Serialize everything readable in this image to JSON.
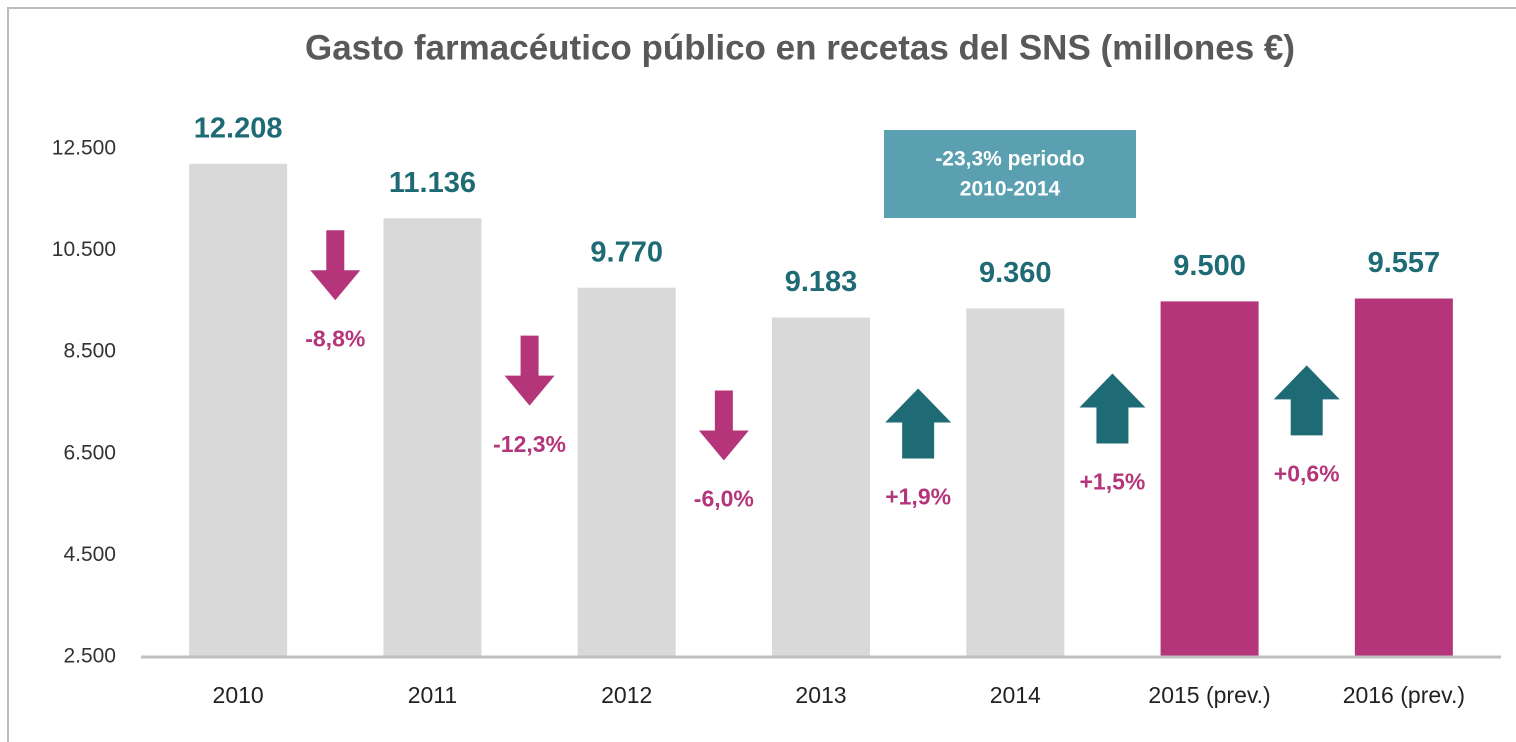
{
  "chart_data": {
    "type": "bar",
    "title": "Gasto farmacéutico público en recetas del SNS (millones €)",
    "categories": [
      "2010",
      "2011",
      "2012",
      "2013",
      "2014",
      "2015 (prev.)",
      "2016 (prev.)"
    ],
    "values": [
      12208,
      11136,
      9770,
      9183,
      9360,
      9500,
      9557
    ],
    "value_labels": [
      "12.208",
      "11.136",
      "9.770",
      "9.183",
      "9.360",
      "9.500",
      "9.557"
    ],
    "colors": [
      "#d9d9d9",
      "#d9d9d9",
      "#d9d9d9",
      "#d9d9d9",
      "#d9d9d9",
      "#b5357a",
      "#b5357a"
    ],
    "ylim": [
      2500,
      12500
    ],
    "yticks": [
      {
        "value": 2500,
        "label": "2.500"
      },
      {
        "value": 4500,
        "label": "4.500"
      },
      {
        "value": 6500,
        "label": "6.500"
      },
      {
        "value": 8500,
        "label": "8.500"
      },
      {
        "value": 10500,
        "label": "10.500"
      },
      {
        "value": 12500,
        "label": "12.500"
      }
    ],
    "changes": [
      {
        "value": -8.8,
        "label": "-8,8%"
      },
      {
        "value": -12.3,
        "label": "-12,3%"
      },
      {
        "value": -6.0,
        "label": "-6,0%"
      },
      {
        "value": 1.9,
        "label": "+1,9%"
      },
      {
        "value": 1.5,
        "label": "+1,5%"
      },
      {
        "value": 0.6,
        "label": "+0,6%"
      }
    ],
    "annotation": [
      "-23,3% periodo",
      "2010-2014"
    ]
  }
}
